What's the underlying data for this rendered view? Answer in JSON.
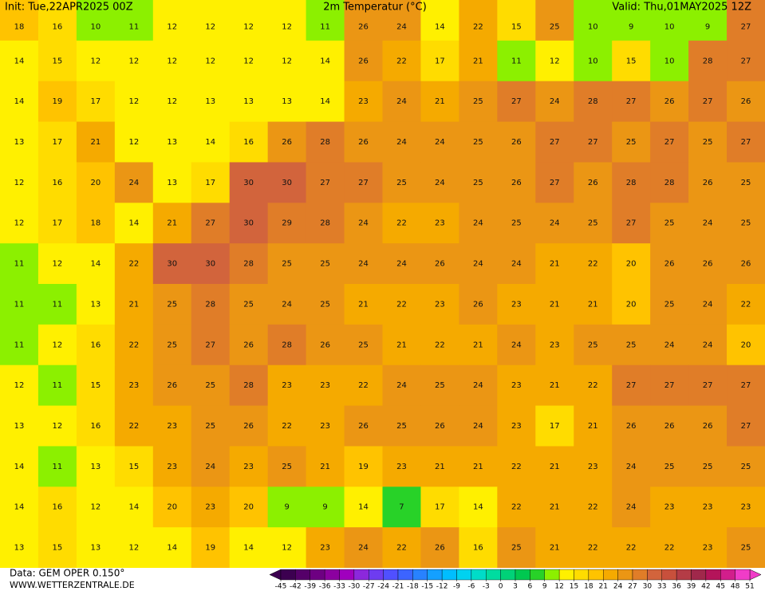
{
  "header": {
    "init": "Init: Tue,22APR2025 00Z",
    "title": "2m Temperatur (°C)",
    "valid": "Valid: Thu,01MAY2025 12Z"
  },
  "footer": {
    "data": "Data: GEM OPER 0.150°",
    "site": "WWW.WETTERZENTRALE.DE"
  },
  "colorbar": {
    "ticks": [
      -45,
      -42,
      -39,
      -36,
      -33,
      -30,
      -27,
      -24,
      -21,
      -18,
      -15,
      -12,
      -9,
      -6,
      -3,
      0,
      3,
      6,
      9,
      12,
      15,
      18,
      21,
      24,
      27,
      30,
      33,
      36,
      39,
      42,
      45,
      48,
      51
    ],
    "colors": [
      "#3c0050",
      "#550069",
      "#6e0082",
      "#8c00a0",
      "#a000be",
      "#8c28dc",
      "#6e3cf0",
      "#5050ff",
      "#3c64ff",
      "#2882ff",
      "#14a0ff",
      "#00beff",
      "#00d2f0",
      "#00dcc8",
      "#00dca0",
      "#00d278",
      "#00c850",
      "#28d228",
      "#8cf000",
      "#fff000",
      "#ffdc00",
      "#ffc300",
      "#f5aa00",
      "#eb9614",
      "#e07d28",
      "#d2643c",
      "#c8503c",
      "#b43c46",
      "#a0284b",
      "#b4145a",
      "#d21e8c",
      "#f03cc8"
    ]
  },
  "map": {
    "rows": [
      [
        18,
        16,
        10,
        11,
        12,
        12,
        12,
        12,
        11,
        26,
        24,
        14,
        22,
        15,
        25,
        10,
        9,
        10,
        9,
        27
      ],
      [
        14,
        15,
        12,
        12,
        12,
        12,
        12,
        12,
        14,
        26,
        22,
        17,
        21,
        11,
        12,
        10,
        15,
        10,
        28,
        27
      ],
      [
        14,
        19,
        17,
        12,
        12,
        13,
        13,
        13,
        14,
        23,
        24,
        21,
        25,
        27,
        24,
        28,
        27,
        26,
        27,
        26
      ],
      [
        13,
        17,
        21,
        12,
        13,
        14,
        16,
        26,
        28,
        26,
        24,
        24,
        25,
        26,
        27,
        27,
        25,
        27,
        25,
        27
      ],
      [
        12,
        16,
        20,
        24,
        13,
        17,
        30,
        30,
        27,
        27,
        25,
        24,
        25,
        26,
        27,
        26,
        28,
        28,
        26,
        25
      ],
      [
        12,
        17,
        18,
        14,
        21,
        27,
        30,
        29,
        28,
        24,
        22,
        23,
        24,
        25,
        24,
        25,
        27,
        25,
        24,
        25
      ],
      [
        11,
        12,
        14,
        22,
        30,
        30,
        28,
        25,
        25,
        24,
        24,
        26,
        24,
        24,
        21,
        22,
        20,
        26,
        26,
        26
      ],
      [
        11,
        11,
        13,
        21,
        25,
        28,
        25,
        24,
        25,
        21,
        22,
        23,
        26,
        23,
        21,
        21,
        20,
        25,
        24,
        22
      ],
      [
        11,
        12,
        16,
        22,
        25,
        27,
        26,
        28,
        26,
        25,
        21,
        22,
        21,
        24,
        23,
        25,
        25,
        24,
        24,
        20
      ],
      [
        12,
        11,
        15,
        23,
        26,
        25,
        28,
        23,
        23,
        22,
        24,
        25,
        24,
        23,
        21,
        22,
        27,
        27,
        27,
        27
      ],
      [
        13,
        12,
        16,
        22,
        23,
        25,
        26,
        22,
        23,
        26,
        25,
        26,
        24,
        23,
        17,
        21,
        26,
        26,
        26,
        27
      ],
      [
        14,
        11,
        13,
        15,
        23,
        24,
        23,
        25,
        21,
        19,
        23,
        21,
        21,
        22,
        21,
        23,
        24,
        25,
        25,
        25
      ],
      [
        14,
        16,
        12,
        14,
        20,
        23,
        20,
        9,
        9,
        14,
        7,
        17,
        14,
        22,
        21,
        22,
        24,
        23,
        23,
        23
      ],
      [
        13,
        15,
        13,
        12,
        14,
        19,
        14,
        12,
        23,
        24,
        22,
        26,
        16,
        25,
        21,
        22,
        22,
        22,
        23,
        25
      ]
    ]
  }
}
